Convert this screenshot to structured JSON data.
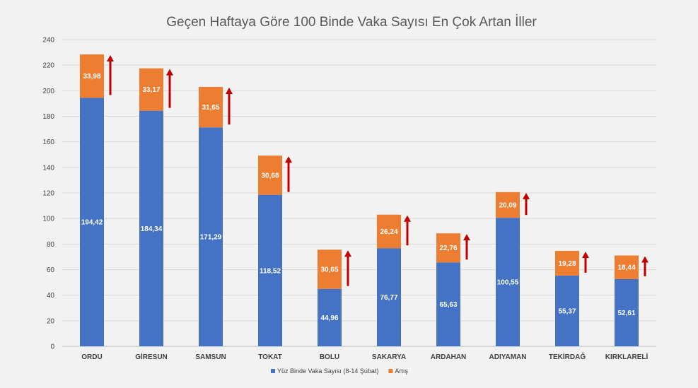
{
  "chart_data": {
    "type": "bar",
    "stacked": true,
    "title": "Geçen Haftaya Göre 100 Binde Vaka Sayısı En Çok Artan İller",
    "xlabel": "",
    "ylabel": "",
    "ylim": [
      0,
      240
    ],
    "yticks": [
      "0",
      "20",
      "40",
      "60",
      "80",
      "100",
      "120",
      "140",
      "160",
      "180",
      "200",
      "220",
      "240"
    ],
    "grid": true,
    "legend_position": "bottom",
    "categories": [
      "ORDU",
      "GİRESUN",
      "SAMSUN",
      "TOKAT",
      "BOLU",
      "SAKARYA",
      "ARDAHAN",
      "ADIYAMAN",
      "TEKİRDAĞ",
      "KIRKLARELİ"
    ],
    "series": [
      {
        "name": "Yüz Binde Vaka Sayısı (8-14 Şubat)",
        "color": "#4472c4",
        "values": [
          194.42,
          184.34,
          171.29,
          118.52,
          44.96,
          76.77,
          65.63,
          100.55,
          55.37,
          52.61
        ],
        "labels": [
          "194,42",
          "184,34",
          "171,29",
          "118,52",
          "44,96",
          "76,77",
          "65,63",
          "100,55",
          "55,37",
          "52,61"
        ]
      },
      {
        "name": "Artış",
        "color": "#ed7d31",
        "values": [
          33.98,
          33.17,
          31.65,
          30.68,
          30.65,
          26.24,
          22.76,
          20.09,
          19.28,
          18.44
        ],
        "labels": [
          "33,98",
          "33,17",
          "31,65",
          "30,68",
          "30,65",
          "26,24",
          "22,76",
          "20,09",
          "19,28",
          "18,44"
        ]
      }
    ],
    "annotation": {
      "type": "up-arrow",
      "color": "#c00000"
    }
  }
}
